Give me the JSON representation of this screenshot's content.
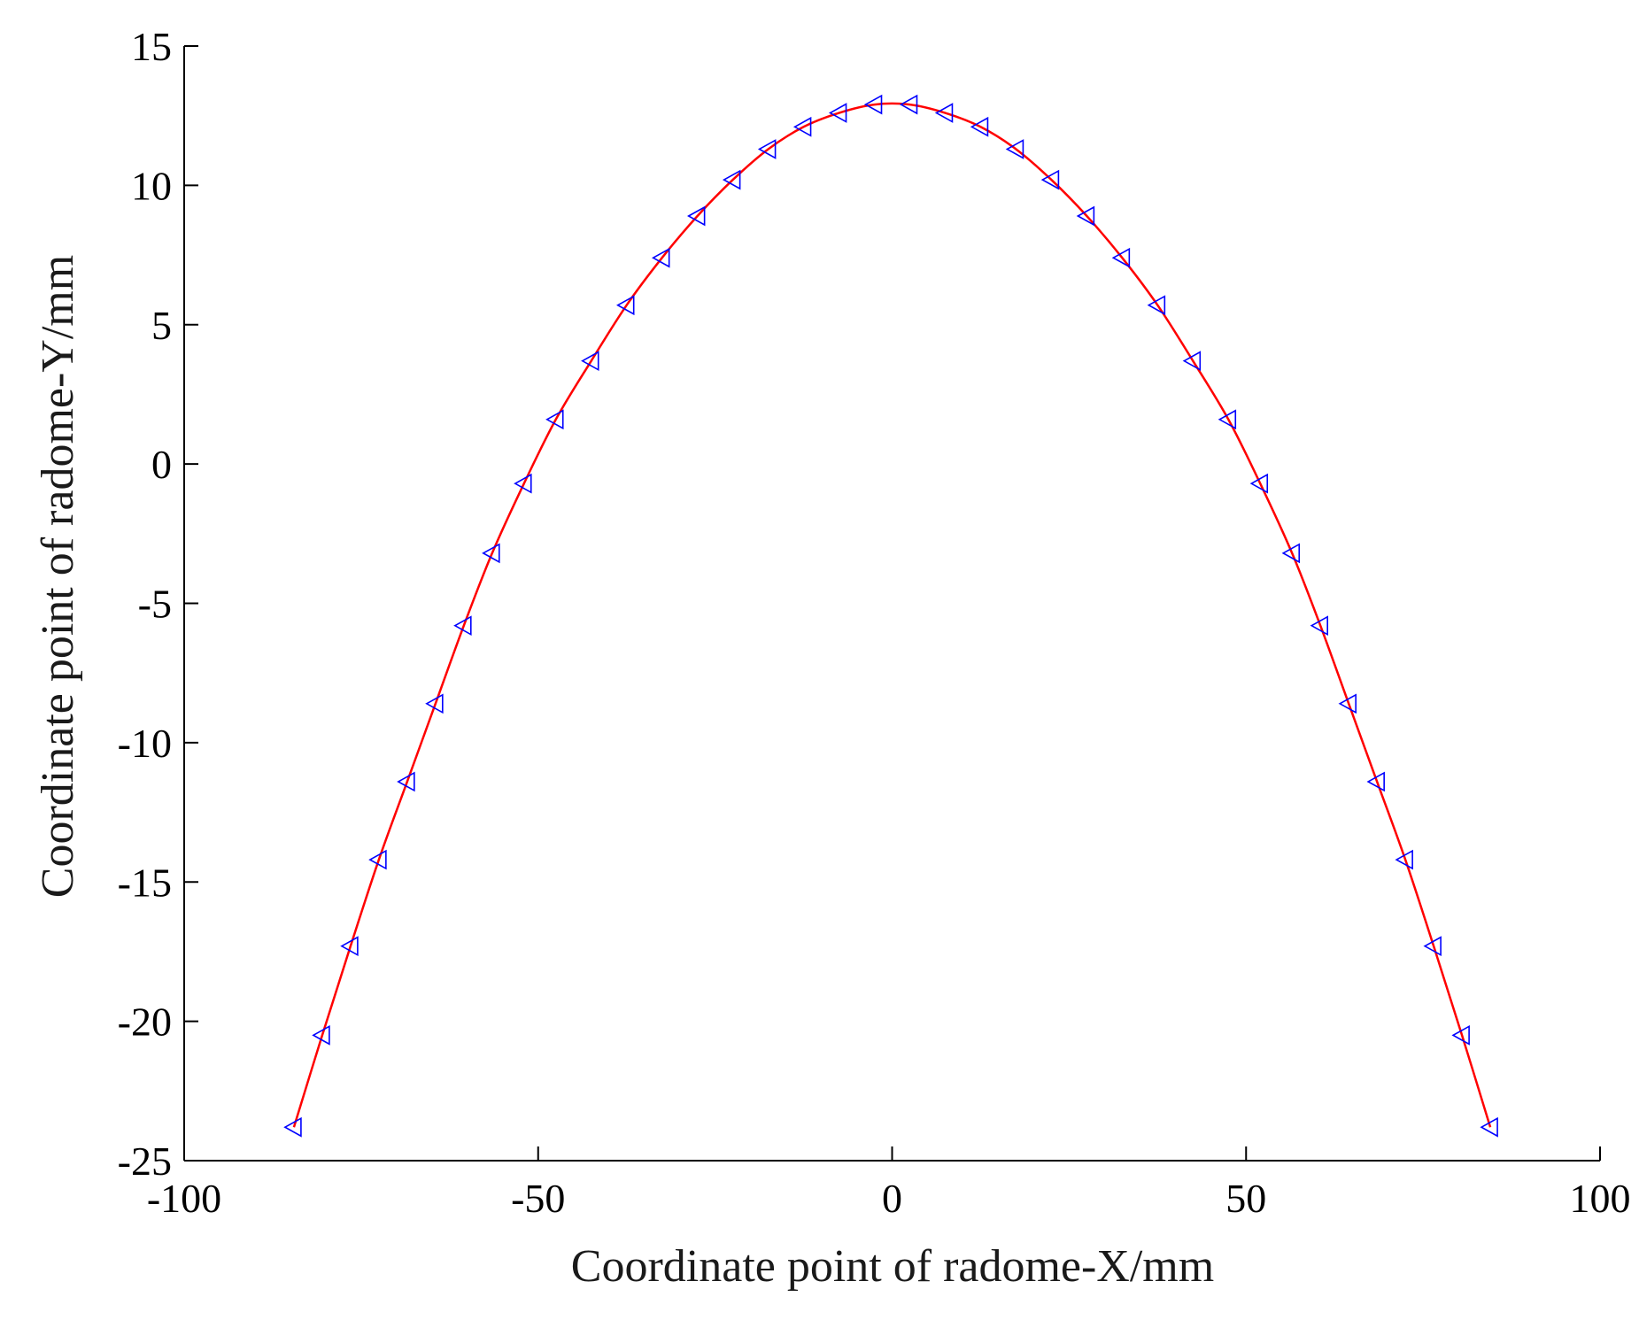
{
  "chart_data": {
    "type": "line",
    "title": "",
    "xlabel": "Coordinate point of radome-X/mm",
    "ylabel": "Coordinate point of radome-Y/mm",
    "xlim": [
      -100,
      100
    ],
    "ylim": [
      -25,
      15
    ],
    "xticks": [
      -100,
      -50,
      0,
      50,
      100
    ],
    "yticks": [
      15,
      10,
      5,
      0,
      -5,
      -10,
      -15,
      -20,
      -25
    ],
    "xtick_labels": [
      "-100",
      "-50",
      "0",
      "50",
      "100"
    ],
    "ytick_labels": [
      "15",
      "10",
      "5",
      "0",
      "-5",
      "-10",
      "-15",
      "-20",
      "-25"
    ],
    "grid": false,
    "colors": {
      "line": "#ff0000",
      "marker": "#0000ff"
    },
    "series": [
      {
        "marker": "triangle-left",
        "x": [
          -84.5,
          -80.5,
          -76.5,
          -72.5,
          -68.5,
          -64.5,
          -60.5,
          -56.5,
          -52.0,
          -47.5,
          -42.5,
          -37.5,
          -32.5,
          -27.5,
          -22.5,
          -17.5,
          -12.5,
          -7.5,
          -2.5,
          2.5,
          7.5,
          12.5,
          17.5,
          22.5,
          27.5,
          32.5,
          37.5,
          42.5,
          47.5,
          52.0,
          56.5,
          60.5,
          64.5,
          68.5,
          72.5,
          76.5,
          80.5,
          84.5
        ],
        "y": [
          -23.8,
          -20.5,
          -17.3,
          -14.2,
          -11.4,
          -8.6,
          -5.8,
          -3.2,
          -0.7,
          1.6,
          3.7,
          5.7,
          7.4,
          8.9,
          10.2,
          11.3,
          12.1,
          12.6,
          12.9,
          12.9,
          12.6,
          12.1,
          11.3,
          10.2,
          8.9,
          7.4,
          5.7,
          3.7,
          1.6,
          -0.7,
          -3.2,
          -5.8,
          -8.6,
          -11.4,
          -14.2,
          -17.3,
          -20.5,
          -23.8
        ]
      }
    ]
  }
}
